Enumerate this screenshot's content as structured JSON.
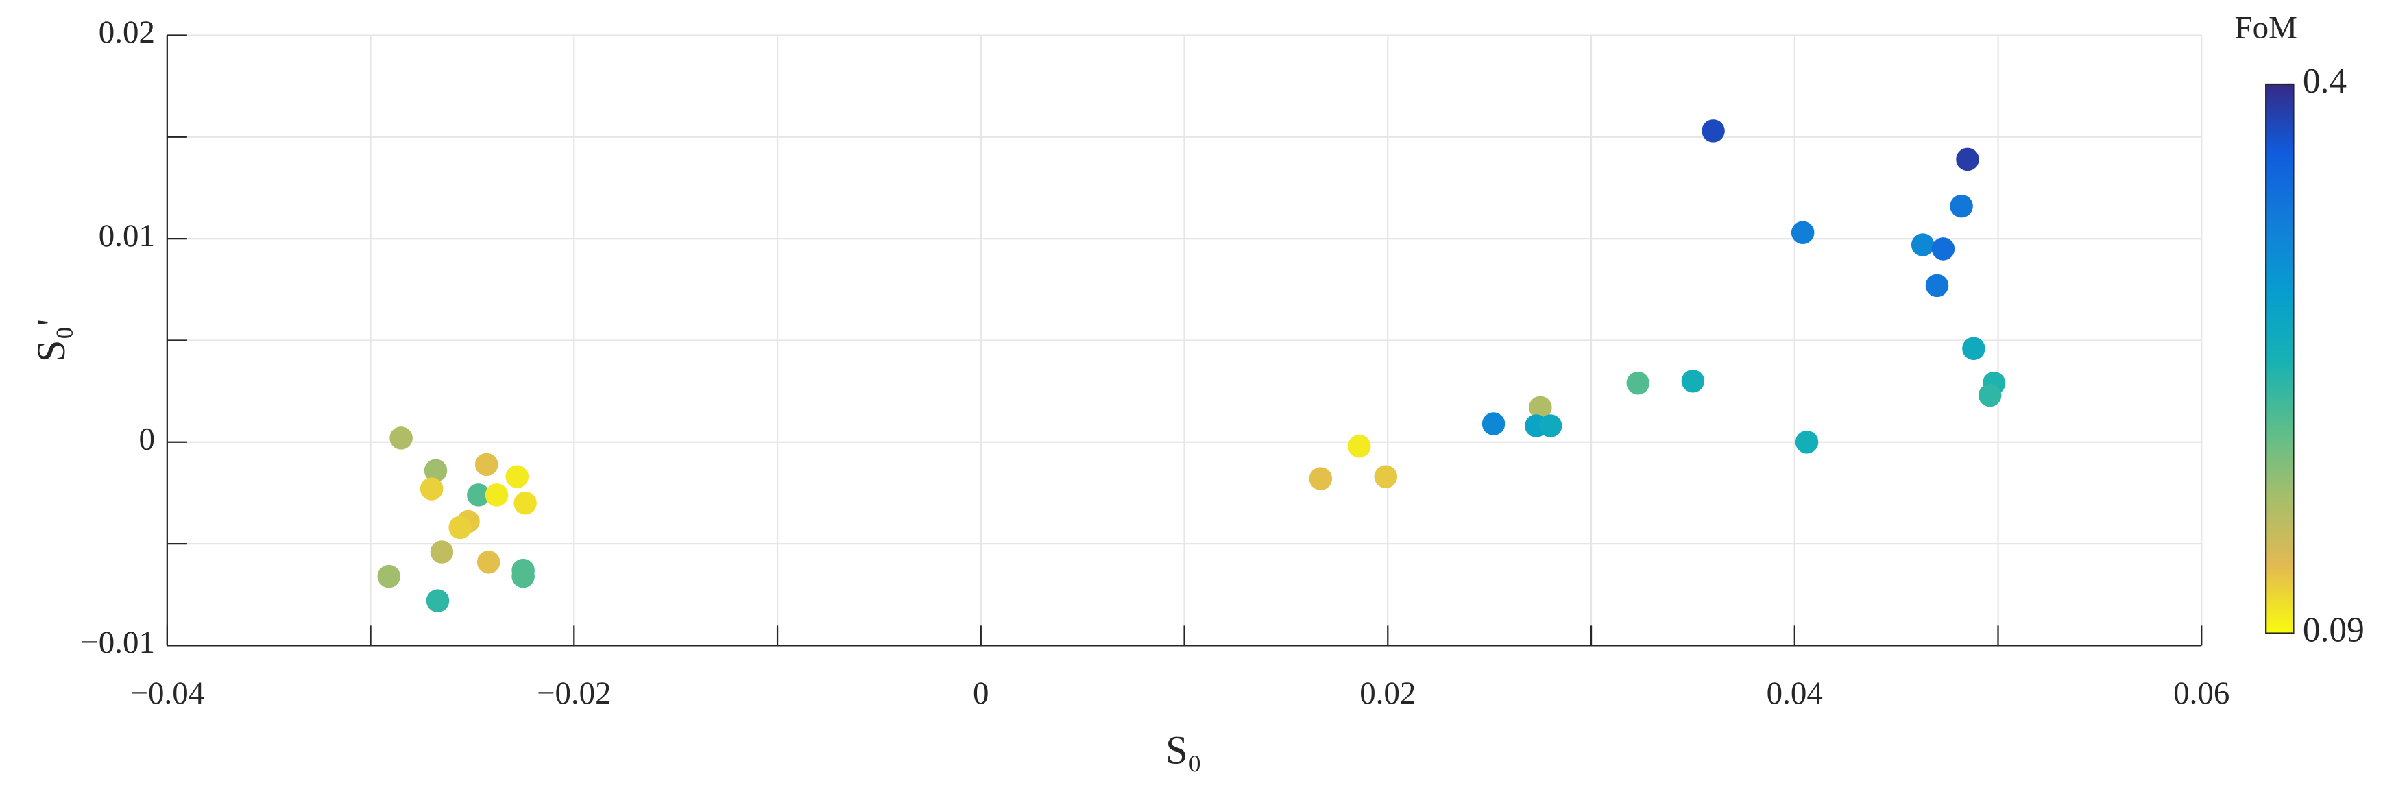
{
  "chart_data": {
    "type": "scatter",
    "xlabel": "S₀",
    "ylabel": "S₀'",
    "xlim": [
      -0.04,
      0.06
    ],
    "xticks": [
      {
        "value": -0.04,
        "label": "−0.04"
      },
      {
        "value": -0.02,
        "label": "−0.02"
      },
      0,
      0.02,
      0.04,
      0.06
    ],
    "x_minor_ticks": [
      -0.03,
      -0.01,
      0.01,
      0.03,
      0.05
    ],
    "ylim": [
      -0.01,
      0.02
    ],
    "yticks": [
      {
        "value": -0.01,
        "label": "−0.01"
      },
      0,
      0.01,
      0.02
    ],
    "y_minor_ticks": [
      -0.005,
      0.005,
      0.015
    ],
    "grid": true,
    "colorbar": {
      "label": "FoM",
      "clim": [
        0.09,
        0.4
      ],
      "ticks": [
        0.09,
        0.4
      ],
      "colormap": "parula",
      "reversed": true
    },
    "x": [
      0.036,
      0.0485,
      0.0482,
      0.0404,
      0.0463,
      0.0473,
      0.047,
      0.0488,
      0.0498,
      0.0496,
      0.035,
      0.0323,
      0.0275,
      0.0252,
      0.0273,
      0.028,
      0.0406,
      0.0186,
      0.0167,
      0.0199,
      -0.0285,
      -0.0268,
      -0.0243,
      -0.0228,
      -0.027,
      -0.0247,
      -0.0238,
      -0.0224,
      -0.0252,
      -0.0256,
      -0.0265,
      -0.0242,
      -0.0225,
      -0.0225,
      -0.0291,
      -0.0267
    ],
    "y": [
      0.0153,
      0.0139,
      0.0116,
      0.0103,
      0.0097,
      0.0095,
      0.0077,
      0.0046,
      0.0029,
      0.0023,
      0.003,
      0.0029,
      0.0017,
      0.0009,
      0.0008,
      0.0008,
      0,
      -0.0002,
      -0.0018,
      -0.0017,
      0.0002,
      -0.0014,
      -0.0011,
      -0.0017,
      -0.0023,
      -0.0026,
      -0.0026,
      -0.003,
      -0.0039,
      -0.0042,
      -0.0054,
      -0.0059,
      -0.0063,
      -0.0066,
      -0.0066,
      -0.0078
    ],
    "fom": [
      0.375,
      0.385,
      0.33,
      0.32,
      0.31,
      0.34,
      0.33,
      0.26,
      0.24,
      0.23,
      0.25,
      0.21,
      0.16,
      0.31,
      0.27,
      0.26,
      0.25,
      0.1,
      0.125,
      0.12,
      0.16,
      0.17,
      0.125,
      0.1,
      0.115,
      0.21,
      0.1,
      0.105,
      0.12,
      0.115,
      0.15,
      0.125,
      0.21,
      0.21,
      0.17,
      0.23
    ]
  }
}
